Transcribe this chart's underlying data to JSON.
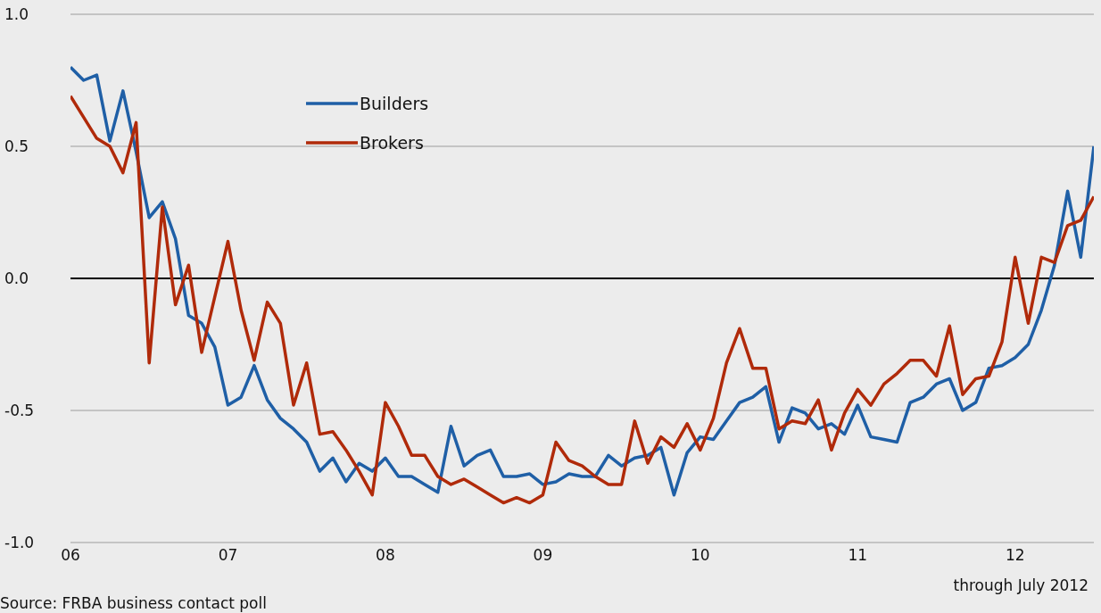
{
  "chart_data": {
    "type": "line",
    "x": [
      "2006-01",
      "2006-02",
      "2006-03",
      "2006-04",
      "2006-05",
      "2006-06",
      "2006-07",
      "2006-08",
      "2006-09",
      "2006-10",
      "2006-11",
      "2006-12",
      "2007-01",
      "2007-02",
      "2007-03",
      "2007-04",
      "2007-05",
      "2007-06",
      "2007-07",
      "2007-08",
      "2007-09",
      "2007-10",
      "2007-11",
      "2007-12",
      "2008-01",
      "2008-02",
      "2008-03",
      "2008-04",
      "2008-05",
      "2008-06",
      "2008-07",
      "2008-08",
      "2008-09",
      "2008-10",
      "2008-11",
      "2008-12",
      "2009-01",
      "2009-02",
      "2009-03",
      "2009-04",
      "2009-05",
      "2009-06",
      "2009-07",
      "2009-08",
      "2009-09",
      "2009-10",
      "2009-11",
      "2009-12",
      "2010-01",
      "2010-02",
      "2010-03",
      "2010-04",
      "2010-05",
      "2010-06",
      "2010-07",
      "2010-08",
      "2010-09",
      "2010-10",
      "2010-11",
      "2010-12",
      "2011-01",
      "2011-02",
      "2011-03",
      "2011-04",
      "2011-05",
      "2011-06",
      "2011-07",
      "2011-08",
      "2011-09",
      "2011-10",
      "2011-11",
      "2011-12",
      "2012-01",
      "2012-02",
      "2012-03",
      "2012-04",
      "2012-05",
      "2012-06",
      "2012-07"
    ],
    "series": [
      {
        "name": "Builders",
        "color": "#1f5fa6",
        "values": [
          0.8,
          0.75,
          0.77,
          0.52,
          0.71,
          0.48,
          0.23,
          0.29,
          0.15,
          -0.14,
          -0.17,
          -0.26,
          -0.48,
          -0.45,
          -0.33,
          -0.46,
          -0.53,
          -0.57,
          -0.62,
          -0.73,
          -0.68,
          -0.77,
          -0.7,
          -0.73,
          -0.68,
          -0.75,
          -0.75,
          -0.78,
          -0.81,
          -0.56,
          -0.71,
          -0.67,
          -0.65,
          -0.75,
          -0.75,
          -0.74,
          -0.78,
          -0.77,
          -0.74,
          -0.75,
          -0.75,
          -0.67,
          -0.71,
          -0.68,
          -0.67,
          -0.64,
          -0.82,
          -0.66,
          -0.6,
          -0.61,
          -0.54,
          -0.47,
          -0.45,
          -0.41,
          -0.62,
          -0.49,
          -0.51,
          -0.57,
          -0.55,
          -0.59,
          -0.48,
          -0.6,
          -0.61,
          -0.62,
          -0.47,
          -0.45,
          -0.4,
          -0.38,
          -0.5,
          -0.47,
          -0.34,
          -0.33,
          -0.3,
          -0.25,
          -0.12,
          0.05,
          0.33,
          0.08,
          0.5
        ]
      },
      {
        "name": "Brokers",
        "color": "#b02a0a",
        "values": [
          0.69,
          0.61,
          0.53,
          0.5,
          0.4,
          0.59,
          -0.32,
          0.27,
          -0.1,
          0.05,
          -0.28,
          -0.07,
          0.14,
          -0.12,
          -0.31,
          -0.09,
          -0.17,
          -0.48,
          -0.32,
          -0.59,
          -0.58,
          -0.65,
          -0.73,
          -0.82,
          -0.47,
          -0.56,
          -0.67,
          -0.67,
          -0.75,
          -0.78,
          -0.76,
          -0.79,
          -0.82,
          -0.85,
          -0.83,
          -0.85,
          -0.82,
          -0.62,
          -0.69,
          -0.71,
          -0.75,
          -0.78,
          -0.78,
          -0.54,
          -0.7,
          -0.6,
          -0.64,
          -0.55,
          -0.65,
          -0.53,
          -0.32,
          -0.19,
          -0.34,
          -0.34,
          -0.57,
          -0.54,
          -0.55,
          -0.46,
          -0.65,
          -0.51,
          -0.42,
          -0.48,
          -0.4,
          -0.36,
          -0.31,
          -0.31,
          -0.37,
          -0.18,
          -0.44,
          -0.38,
          -0.37,
          -0.24,
          0.08,
          -0.17,
          0.08,
          0.06,
          0.2,
          0.22,
          0.31
        ]
      }
    ],
    "xlim": [
      "2006-01",
      "2012-07"
    ],
    "xticks": [
      {
        "value": "2006-01",
        "label": "06"
      },
      {
        "value": "2007-01",
        "label": "07"
      },
      {
        "value": "2008-01",
        "label": "08"
      },
      {
        "value": "2009-01",
        "label": "09"
      },
      {
        "value": "2010-01",
        "label": "10"
      },
      {
        "value": "2011-01",
        "label": "11"
      },
      {
        "value": "2012-01",
        "label": "12"
      }
    ],
    "ylim": [
      -1,
      1
    ],
    "yticks": [
      {
        "value": -1,
        "label": "-1.0"
      },
      {
        "value": -0.5,
        "label": "-0.5"
      },
      {
        "value": 0,
        "label": "0.0"
      },
      {
        "value": 0.5,
        "label": "0.5"
      },
      {
        "value": 1,
        "label": "1.0"
      }
    ],
    "ref_lines": [
      {
        "axis": "y",
        "value": 0,
        "label": null,
        "color": "#000000"
      }
    ],
    "grid": "y",
    "legend": "top left",
    "marker": "none",
    "line_style": "solid",
    "annotations": [
      "through July 2012",
      "Source: FRBA business contact poll"
    ]
  }
}
